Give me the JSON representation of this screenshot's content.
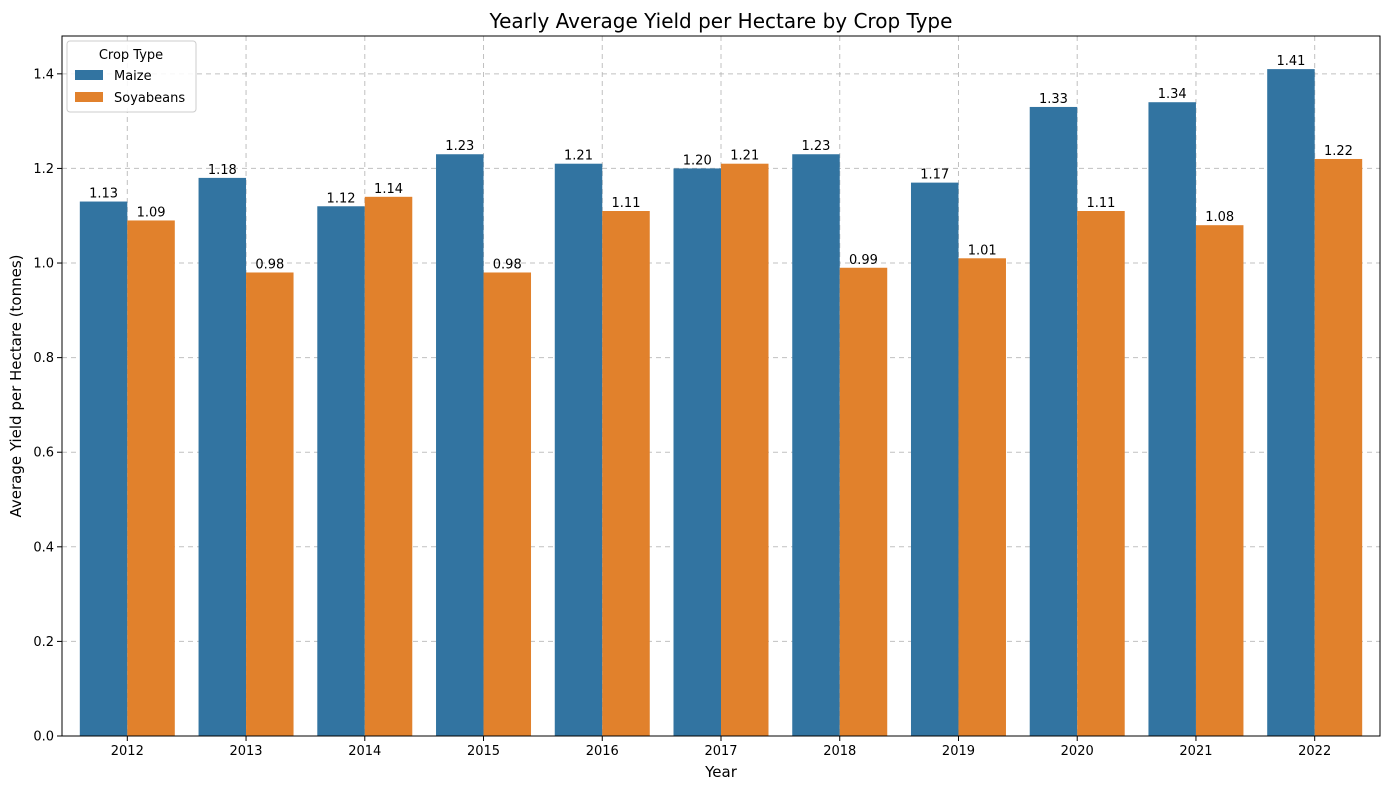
{
  "chart_data": {
    "type": "bar",
    "title": "Yearly Average Yield per Hectare by Crop Type",
    "xlabel": "Year",
    "ylabel": "Average Yield per Hectare (tonnes)",
    "categories": [
      "2012",
      "2013",
      "2014",
      "2015",
      "2016",
      "2017",
      "2018",
      "2019",
      "2020",
      "2021",
      "2022"
    ],
    "series": [
      {
        "name": "Maize",
        "color": "#3274a1",
        "values": [
          1.13,
          1.18,
          1.12,
          1.23,
          1.21,
          1.2,
          1.23,
          1.17,
          1.33,
          1.34,
          1.41
        ],
        "labels": [
          "1.13",
          "1.18",
          "1.12",
          "1.23",
          "1.21",
          "1.20",
          "1.23",
          "1.17",
          "1.33",
          "1.34",
          "1.41"
        ]
      },
      {
        "name": "Soyabeans",
        "color": "#e1812c",
        "values": [
          1.09,
          0.98,
          1.14,
          0.98,
          1.11,
          1.21,
          0.99,
          1.01,
          1.11,
          1.08,
          1.22
        ],
        "labels": [
          "1.09",
          "0.98",
          "1.14",
          "0.98",
          "1.11",
          "1.21",
          "0.99",
          "1.01",
          "1.11",
          "1.08",
          "1.22"
        ]
      }
    ],
    "ylim": [
      0,
      1.48
    ],
    "yticks": [
      "0.0",
      "0.2",
      "0.4",
      "0.6",
      "0.8",
      "1.0",
      "1.2",
      "1.4"
    ],
    "grid": true,
    "legend": {
      "title": "Crop Type",
      "placement": "top-left",
      "entries": [
        "Maize",
        "Soyabeans"
      ]
    }
  }
}
